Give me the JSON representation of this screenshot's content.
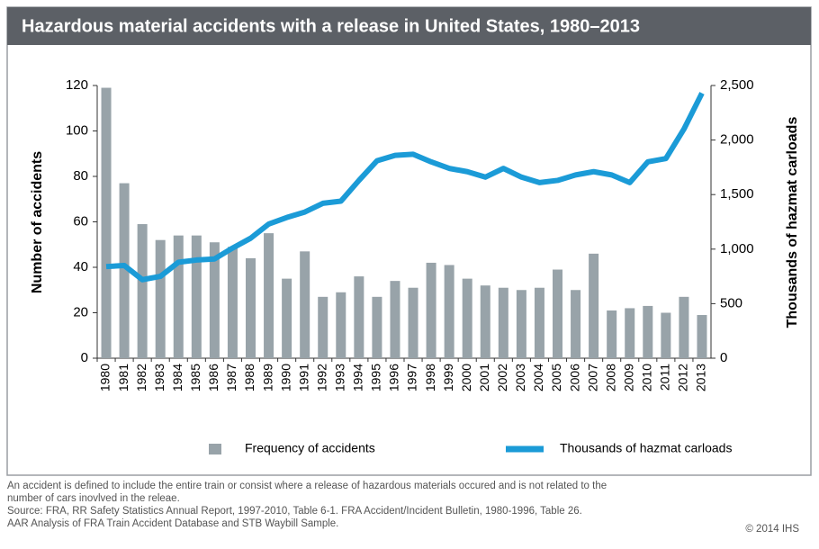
{
  "chart_data": {
    "type": "bar",
    "title": "Hazardous material accidents with a release in United States, 1980–2013",
    "y_label": "Number of accidents",
    "y2_label": "Thousands of hazmat carloads",
    "categories": [
      "1980",
      "1981",
      "1982",
      "1983",
      "1984",
      "1985",
      "1986",
      "1987",
      "1988",
      "1989",
      "1990",
      "1991",
      "1992",
      "1993",
      "1994",
      "1995",
      "1996",
      "1997",
      "1998",
      "1999",
      "2000",
      "2001",
      "2002",
      "2003",
      "2004",
      "2005",
      "2006",
      "2007",
      "2008",
      "2009",
      "2010",
      "2011",
      "2012",
      "2013"
    ],
    "series": [
      {
        "name": "Frequency of accidents",
        "type": "bar",
        "color": "#98a3a9",
        "values": [
          119,
          77,
          59,
          52,
          54,
          54,
          51,
          49,
          44,
          55,
          35,
          47,
          27,
          29,
          36,
          27,
          34,
          31,
          42,
          41,
          35,
          32,
          31,
          30,
          31,
          39,
          30,
          46,
          21,
          22,
          23,
          20,
          27,
          19
        ]
      },
      {
        "name": "Thousands of hazmat carloads",
        "type": "line",
        "color": "#1b9bd7",
        "axis": "y2",
        "values": [
          840,
          850,
          720,
          750,
          880,
          900,
          910,
          1010,
          1100,
          1230,
          1290,
          1340,
          1420,
          1440,
          1630,
          1810,
          1860,
          1870,
          1800,
          1740,
          1710,
          1660,
          1740,
          1660,
          1610,
          1630,
          1680,
          1710,
          1680,
          1610,
          1800,
          1830,
          2100,
          2430
        ]
      }
    ],
    "ylim": [
      0,
      120
    ],
    "yticks": [
      0,
      20,
      40,
      60,
      80,
      100,
      120
    ],
    "y2lim": [
      0,
      2500
    ],
    "y2ticks": [
      0,
      500,
      {
        "value": 1000,
        "label": "1,000"
      },
      {
        "value": 1500,
        "label": "1,500"
      },
      {
        "value": 2000,
        "label": "2,000"
      },
      {
        "value": 2500,
        "label": "2,500"
      }
    ],
    "grid": false,
    "legend": "bottom"
  },
  "footnotes": [
    "An accident is defined to include the entire train or consist where a release of hazardous materials occured and is not related to the",
    "number of cars inovlved in the releae.",
    "Source: FRA, RR Safety Statistics Annual Report, 1997-2010, Table 6-1. FRA Accident/Incident Bulletin, 1980-1996, Table 26.",
    "AAR Analysis of FRA Train Accident Database and STB Waybill Sample."
  ],
  "copyright": "© 2014 IHS"
}
